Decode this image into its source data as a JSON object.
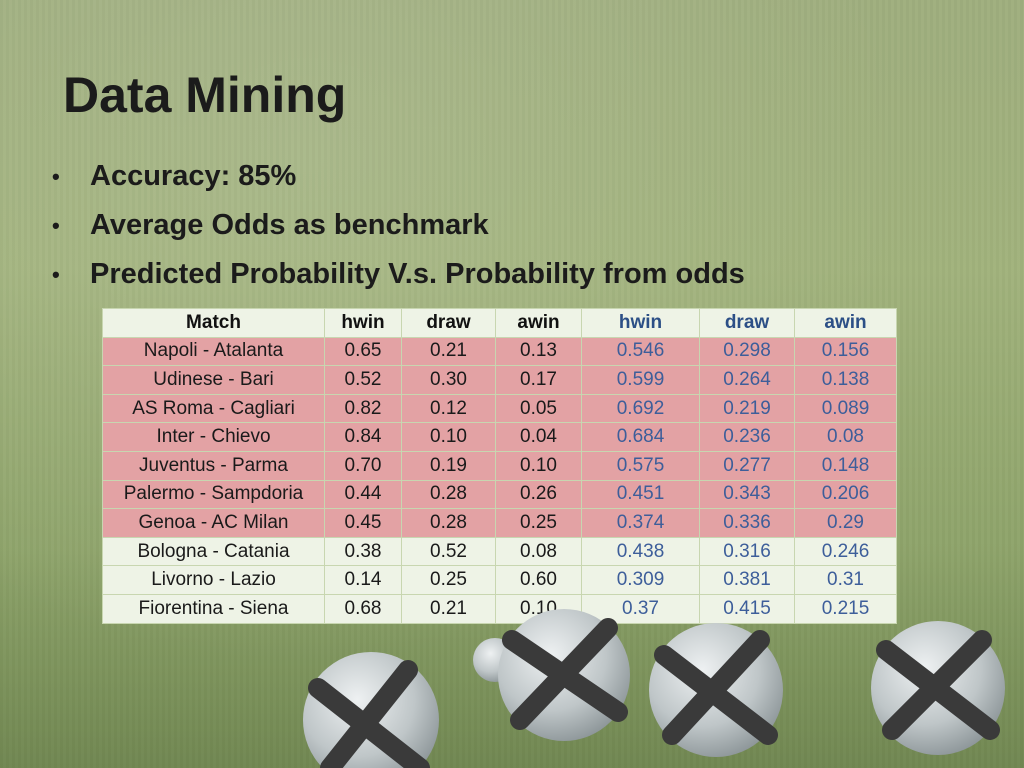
{
  "slide": {
    "title": "Data Mining",
    "bullets": [
      "Accuracy: 85%",
      "Average Odds as benchmark",
      "Predicted Probability V.s. Probability from odds"
    ]
  },
  "table": {
    "headers": [
      "Match",
      "hwin",
      "draw",
      "awin",
      "hwin",
      "draw",
      "awin"
    ],
    "rows": [
      [
        "Napoli - Atalanta",
        "0.65",
        "0.21",
        "0.13",
        "0.546",
        "0.298",
        "0.156"
      ],
      [
        "Udinese - Bari",
        "0.52",
        "0.30",
        "0.17",
        "0.599",
        "0.264",
        "0.138"
      ],
      [
        "AS Roma - Cagliari",
        "0.82",
        "0.12",
        "0.05",
        "0.692",
        "0.219",
        "0.089"
      ],
      [
        "Inter - Chievo",
        "0.84",
        "0.10",
        "0.04",
        "0.684",
        "0.236",
        "0.08"
      ],
      [
        "Juventus - Parma",
        "0.70",
        "0.19",
        "0.10",
        "0.575",
        "0.277",
        "0.148"
      ],
      [
        "Palermo - Sampdoria",
        "0.44",
        "0.28",
        "0.26",
        "0.451",
        "0.343",
        "0.206"
      ],
      [
        "Genoa - AC Milan",
        "0.45",
        "0.28",
        "0.25",
        "0.374",
        "0.336",
        "0.29"
      ],
      [
        "Bologna - Catania",
        "0.38",
        "0.52",
        "0.08",
        "0.438",
        "0.316",
        "0.246"
      ],
      [
        "Livorno - Lazio",
        "0.14",
        "0.25",
        "0.60",
        "0.309",
        "0.381",
        "0.31"
      ],
      [
        "Fiorentina - Siena",
        "0.68",
        "0.21",
        "0.10",
        "0.37",
        "0.415",
        "0.215"
      ]
    ],
    "highlighted_rows": 7
  },
  "colors": {
    "highlight_row": "#e3a2a4",
    "plain_row": "#eef3e6",
    "predicted_text": "#3d5e9a"
  }
}
